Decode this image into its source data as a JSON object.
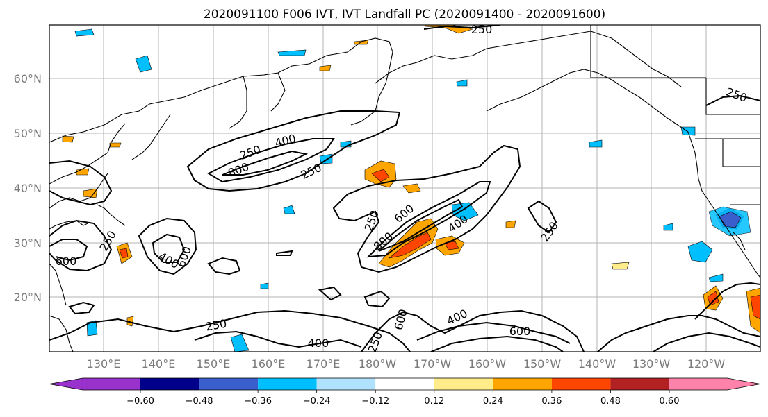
{
  "title": "2020091100 F006 IVT, IVT Landfall PC (2020091400 - 2020091600)",
  "lat_labels": [
    "60°N",
    "50°N",
    "40°N",
    "30°N",
    "20°N"
  ],
  "lon_labels": [
    "130°E",
    "140°E",
    "150°E",
    "160°E",
    "170°E",
    "180°W",
    "170°W",
    "160°W",
    "150°W",
    "140°W",
    "130°W",
    "120°W"
  ],
  "colorbar": {
    "ticks": [
      "−0.60",
      "−0.48",
      "−0.36",
      "−0.24",
      "−0.12",
      "0.12",
      "0.24",
      "0.36",
      "0.48",
      "0.60"
    ],
    "colors": [
      "#9932cc",
      "#00008b",
      "#3a5fcd",
      "#00bfff",
      "#b0e2ff",
      "#ffffff",
      "#ffec8b",
      "#ffa500",
      "#ff4500",
      "#b22222",
      "#ff82ab"
    ]
  },
  "contour_labels": [
    "250",
    "400",
    "600",
    "800",
    "250",
    "400",
    "600",
    "800",
    "250",
    "400",
    "600",
    "250",
    "400",
    "600",
    "250",
    "400",
    "600",
    "250",
    "400",
    "250",
    "600",
    "250",
    "400",
    "250"
  ]
}
